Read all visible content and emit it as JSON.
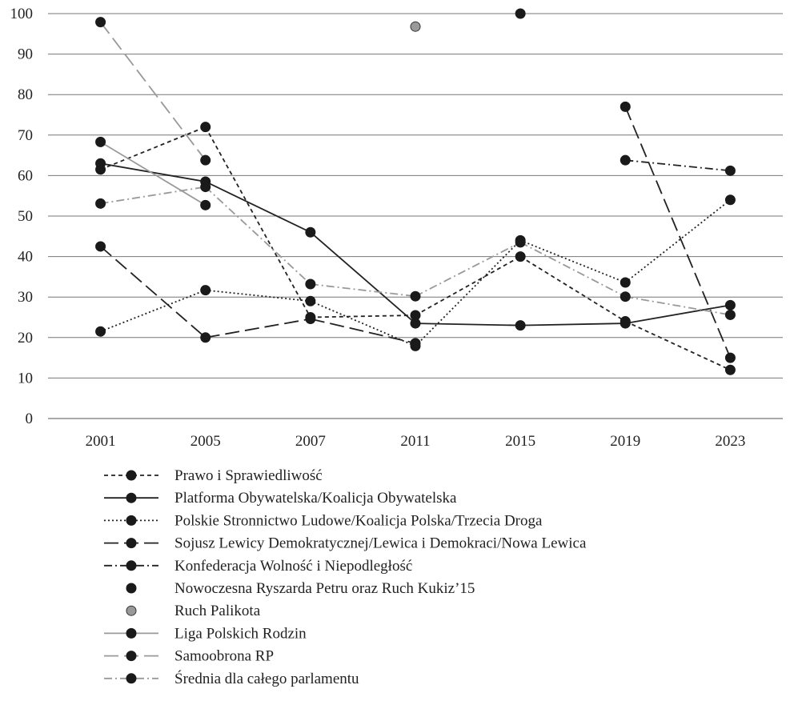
{
  "chart_data": {
    "type": "line",
    "categories": [
      "2001",
      "2005",
      "2007",
      "2011",
      "2015",
      "2019",
      "2023"
    ],
    "ylim": [
      0,
      100
    ],
    "yticks": [
      0,
      10,
      20,
      30,
      40,
      50,
      60,
      70,
      80,
      90,
      100
    ],
    "grid": true,
    "legend_position": "bottom",
    "series": [
      {
        "name": "Prawo i Sprawiedliwość",
        "style": "dash-short",
        "color": "#222222",
        "values": [
          61.5,
          72,
          25,
          25.5,
          40,
          24,
          12
        ]
      },
      {
        "name": "Platforma Obywatelska/Koalicja Obywatelska",
        "style": "solid",
        "color": "#222222",
        "values": [
          63,
          58.5,
          46,
          23.5,
          23,
          23.5,
          28
        ]
      },
      {
        "name": "Polskie Stronnictwo Ludowe/Koalicja Polska/Trzecia Droga",
        "style": "dotted",
        "color": "#222222",
        "values": [
          21.5,
          31.7,
          29,
          17.9,
          44,
          33.6,
          54
        ]
      },
      {
        "name": "Sojusz Lewicy Demokratycznej/Lewica i Demokraci/Nowa Lewica",
        "style": "dash-long",
        "color": "#222222",
        "values": [
          42.5,
          20,
          24.6,
          18.6,
          null,
          77,
          15
        ]
      },
      {
        "name": "Konfederacja Wolność i Niepodległość",
        "style": "dash-dot",
        "color": "#222222",
        "values": [
          null,
          null,
          null,
          null,
          null,
          63.8,
          61.2
        ]
      },
      {
        "name": "Nowoczesna Ryszarda Petru oraz Ruch Kukiz’15",
        "style": "marker-only",
        "color": "#222222",
        "values": [
          null,
          null,
          null,
          null,
          100,
          null,
          null
        ]
      },
      {
        "name": "Ruch Palikota",
        "style": "marker-only",
        "color": "#999999",
        "values": [
          null,
          null,
          null,
          96.8,
          null,
          null,
          null
        ]
      },
      {
        "name": "Liga Polskich Rodzin",
        "style": "solid",
        "color": "#999999",
        "values": [
          68.3,
          52.7,
          null,
          null,
          null,
          null,
          null
        ]
      },
      {
        "name": "Samoobrona RP",
        "style": "dash-long",
        "color": "#999999",
        "values": [
          97.9,
          63.8,
          null,
          null,
          null,
          null,
          null
        ]
      },
      {
        "name": "Średnia dla całego parlamentu",
        "style": "dash-dot",
        "color": "#999999",
        "values": [
          53.1,
          57.2,
          33.2,
          30.2,
          43.5,
          30.1,
          25.6
        ]
      }
    ]
  }
}
